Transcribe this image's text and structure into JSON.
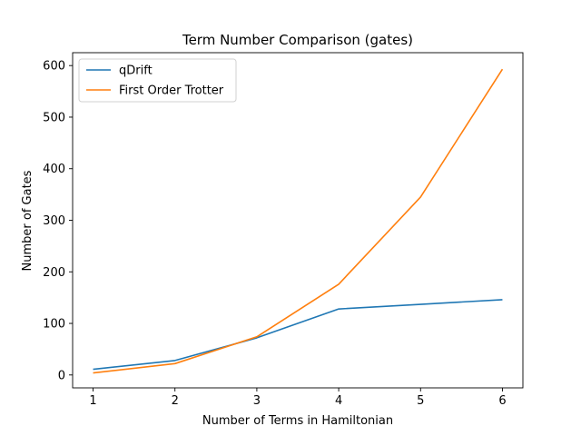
{
  "chart_data": {
    "type": "line",
    "title": "Term Number Comparison (gates)",
    "xlabel": "Number of Terms in Hamiltonian",
    "ylabel": "Number of Gates",
    "x": [
      1,
      2,
      3,
      4,
      5,
      6
    ],
    "xticks": [
      "1",
      "2",
      "3",
      "4",
      "5",
      "6"
    ],
    "yticks": [
      "0",
      "100",
      "200",
      "300",
      "400",
      "500",
      "600"
    ],
    "xlim": [
      0.75,
      6.25
    ],
    "ylim": [
      -25,
      625
    ],
    "grid": false,
    "legend_position": "top-left",
    "series": [
      {
        "name": "qDrift",
        "color": "#1f77b4",
        "values": [
          11,
          28,
          72,
          128,
          137,
          146
        ]
      },
      {
        "name": "First Order Trotter",
        "color": "#ff7f0e",
        "values": [
          4,
          22,
          74,
          176,
          345,
          593
        ]
      }
    ]
  }
}
